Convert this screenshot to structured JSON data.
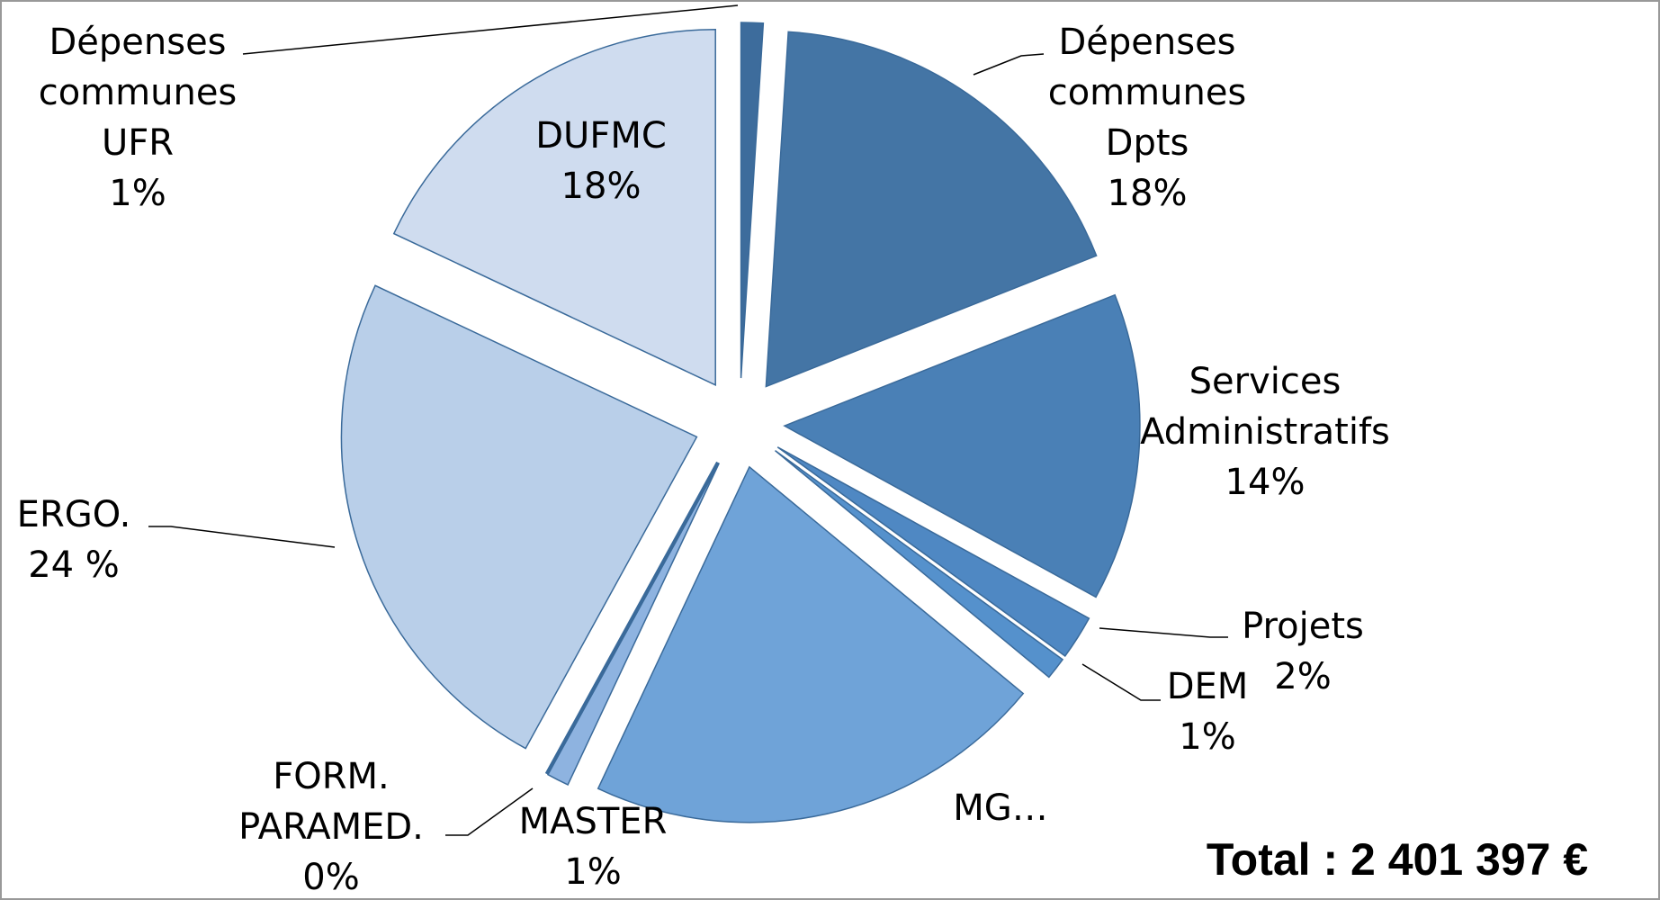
{
  "chart_data": {
    "type": "pie",
    "categories": [
      "Dépenses communes UFR",
      "Dépenses communes Dpts",
      "Services Administratifs",
      "Projets",
      "DEM",
      "MG…",
      "MASTER",
      "FORM. PARAMED.",
      "ERGO.",
      "DUFMC"
    ],
    "values": [
      1,
      18,
      14,
      2,
      1,
      21,
      1,
      0,
      24,
      18
    ],
    "value_labels": [
      "1%",
      "18%",
      "14%",
      "2%",
      "1%",
      null,
      "1%",
      "0%",
      "24 %",
      "18%"
    ],
    "colors": [
      "#3d6c9c",
      "#4475a5",
      "#4a80b6",
      "#4f88c3",
      "#5591cc",
      "#6fa3d8",
      "#8eb3e0",
      "#a6c1e5",
      "#b9cfe9",
      "#cfdcef"
    ],
    "annotation": "Total : 2 401 397 €"
  }
}
